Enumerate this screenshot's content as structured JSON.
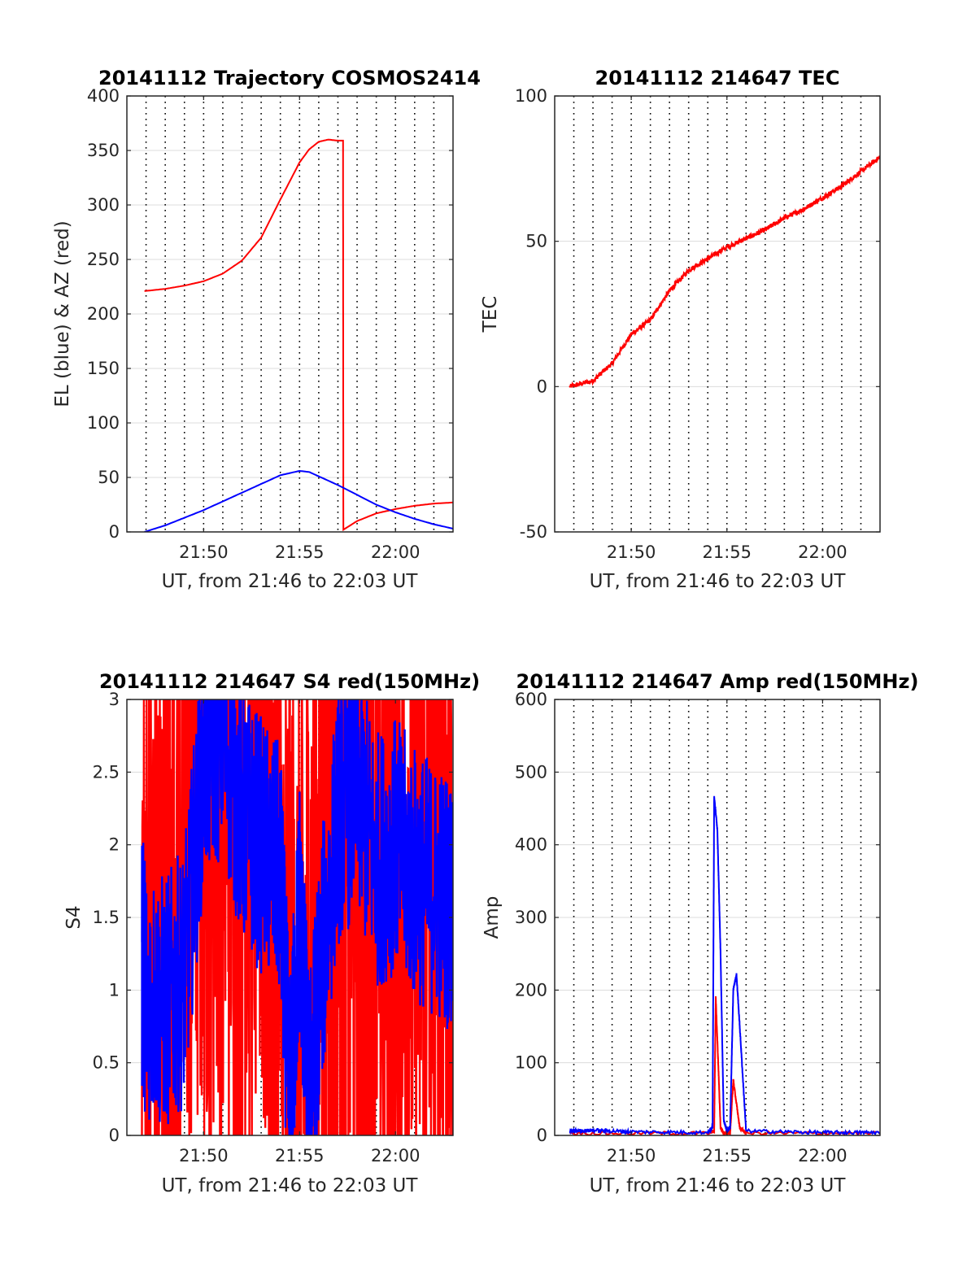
{
  "colors": {
    "red": "#ff0000",
    "blue": "#0000ff",
    "grid": "#dcdcdc",
    "axis": "#262626",
    "tick_grid": "#000000"
  },
  "chart_data": [
    {
      "type": "line",
      "title": "20141112 Trajectory COSMOS2414",
      "xlabel": "UT, from 21:46 to 22:03 UT",
      "ylabel": "EL (blue) & AZ (red)",
      "xlim": [
        "21:46",
        "22:03"
      ],
      "ylim": [
        0,
        400
      ],
      "x_ticks": [
        "21:50",
        "21:55",
        "22:00"
      ],
      "y_ticks": [
        0,
        50,
        100,
        150,
        200,
        250,
        300,
        350,
        400
      ],
      "grid": true,
      "series": [
        {
          "color": "red",
          "x": [
            "21:46:55",
            "21:48:00",
            "21:49:00",
            "21:50:00",
            "21:51:00",
            "21:52:00",
            "21:53:00",
            "21:54:00",
            "21:55:00",
            "21:55:30",
            "21:56:00",
            "21:56:30",
            "21:57:00",
            "21:57:16",
            "21:57:17",
            "21:58:00",
            "21:59:00",
            "22:00:00",
            "22:01:00",
            "22:02:00",
            "22:03:00"
          ],
          "values": [
            221,
            223,
            226,
            230,
            237,
            249,
            270,
            305,
            339,
            351,
            358,
            360,
            359,
            359,
            2,
            10,
            17,
            21,
            24,
            26,
            27
          ]
        },
        {
          "color": "blue",
          "x": [
            "21:46:55",
            "21:48:00",
            "21:49:00",
            "21:50:00",
            "21:51:00",
            "21:52:00",
            "21:53:00",
            "21:54:00",
            "21:55:00",
            "21:55:30",
            "21:56:00",
            "21:57:00",
            "21:58:00",
            "21:59:00",
            "22:00:00",
            "22:01:00",
            "22:02:00",
            "22:03:00"
          ],
          "values": [
            0,
            6,
            13,
            20,
            28,
            36,
            44,
            52,
            56,
            55,
            51,
            43,
            34,
            25,
            18,
            12,
            7,
            3
          ]
        }
      ]
    },
    {
      "type": "line",
      "title": "20141112 214647 TEC",
      "xlabel": "UT, from 21:46 to 22:03 UT",
      "ylabel": "TEC",
      "xlim": [
        "21:46",
        "22:03"
      ],
      "ylim": [
        -50,
        100
      ],
      "x_ticks": [
        "21:50",
        "21:55",
        "22:00"
      ],
      "y_ticks": [
        -50,
        0,
        50,
        100
      ],
      "grid": true,
      "series": [
        {
          "color": "red",
          "x": [
            "21:46:47",
            "21:48:00",
            "21:49:00",
            "21:50:00",
            "21:51:00",
            "21:52:00",
            "21:53:00",
            "21:54:00",
            "21:55:00",
            "21:56:00",
            "21:57:00",
            "21:58:00",
            "21:59:00",
            "22:00:00",
            "22:01:00",
            "22:02:00",
            "22:03:00"
          ],
          "values": [
            0,
            2,
            8,
            18,
            23,
            33,
            40,
            44,
            48,
            51,
            54,
            58,
            61,
            65,
            69,
            74,
            79
          ]
        }
      ]
    },
    {
      "type": "line",
      "title": "20141112 214647 S4 red(150MHz)",
      "xlabel": "UT, from 21:46 to 22:03 UT",
      "ylabel": "S4",
      "xlim": [
        "21:46",
        "22:03"
      ],
      "ylim": [
        0,
        3
      ],
      "x_ticks": [
        "21:50",
        "21:55",
        "22:00"
      ],
      "y_ticks": [
        0,
        0.5,
        1,
        1.5,
        2,
        2.5,
        3
      ],
      "grid": true,
      "series": [
        {
          "color": "red",
          "x": [
            "21:46:47",
            "21:48:00",
            "21:49:00",
            "21:50:00",
            "21:51:00",
            "21:52:00",
            "21:53:00",
            "21:54:00",
            "21:55:00",
            "21:56:00",
            "21:57:00",
            "21:58:00",
            "21:59:00",
            "22:00:00",
            "22:01:00",
            "22:02:00",
            "22:03:00"
          ],
          "values": [
            1.2,
            1.0,
            2.5,
            3.0,
            3.0,
            2.8,
            3.0,
            1.0,
            0.3,
            1.6,
            2.4,
            2.0,
            2.2,
            1.9,
            2.0,
            1.9,
            1.8
          ]
        },
        {
          "color": "blue",
          "x": [
            "21:46:47",
            "21:47:00",
            "21:48:00",
            "21:49:00",
            "21:50:00",
            "21:51:00",
            "21:52:00",
            "21:53:00",
            "21:54:00",
            "21:54:30",
            "21:55:00",
            "21:55:30",
            "21:56:00",
            "21:57:00",
            "21:58:00",
            "21:59:00",
            "22:00:00",
            "22:01:00",
            "22:02:00",
            "22:03:00"
          ],
          "values": [
            1.2,
            1.0,
            0.9,
            1.1,
            2.6,
            2.8,
            2.2,
            2.0,
            1.8,
            0.15,
            1.6,
            0.2,
            1.0,
            2.2,
            2.4,
            1.9,
            2.0,
            1.8,
            1.7,
            1.6
          ]
        }
      ]
    },
    {
      "type": "line",
      "title": "20141112 214647 Amp red(150MHz)",
      "xlabel": "UT, from 21:46 to 22:03 UT",
      "ylabel": "Amp",
      "xlim": [
        "21:46",
        "22:03"
      ],
      "ylim": [
        0,
        600
      ],
      "x_ticks": [
        "21:50",
        "21:55",
        "22:00"
      ],
      "y_ticks": [
        0,
        100,
        200,
        300,
        400,
        500,
        600
      ],
      "grid": true,
      "series": [
        {
          "color": "red",
          "x": [
            "21:46:47",
            "21:54:00",
            "21:54:20",
            "21:54:25",
            "21:54:40",
            "21:54:50",
            "21:55:10",
            "21:55:20",
            "21:55:40",
            "21:56:00",
            "22:03:00"
          ],
          "values": [
            2,
            2,
            5,
            190,
            10,
            2,
            2,
            75,
            10,
            2,
            2
          ]
        },
        {
          "color": "blue",
          "x": [
            "21:46:47",
            "21:48:00",
            "21:50:00",
            "21:54:00",
            "21:54:15",
            "21:54:20",
            "21:54:30",
            "21:54:40",
            "21:54:50",
            "21:55:00",
            "21:55:10",
            "21:55:20",
            "21:55:30",
            "21:55:40",
            "21:56:00",
            "22:00:00",
            "22:03:00"
          ],
          "values": [
            5,
            6,
            4,
            3,
            10,
            465,
            420,
            250,
            20,
            5,
            10,
            200,
            220,
            150,
            5,
            3,
            3
          ]
        }
      ]
    }
  ]
}
